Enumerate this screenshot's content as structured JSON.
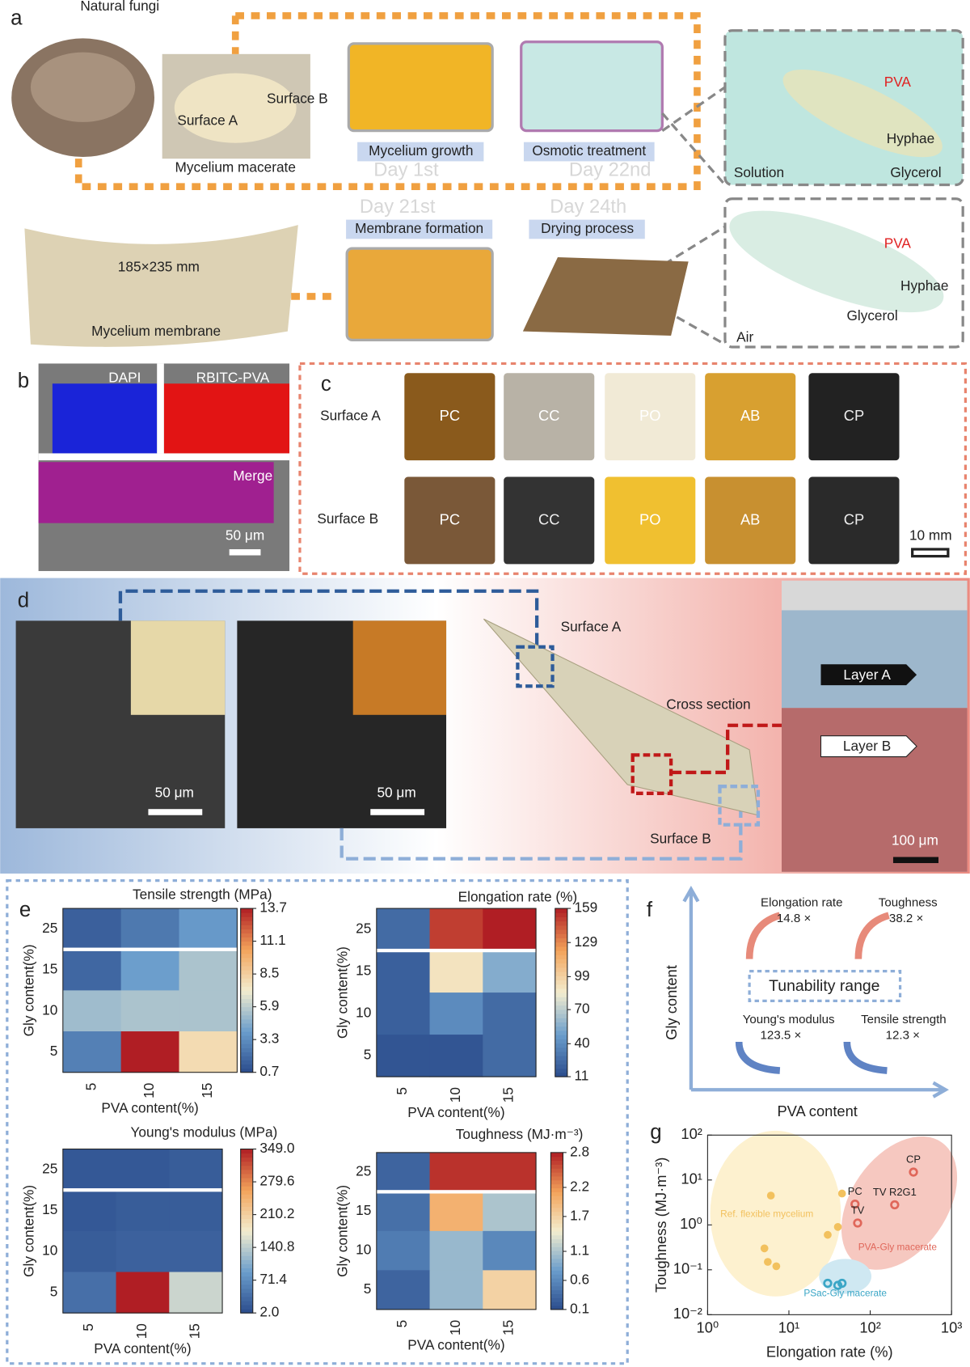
{
  "panel_a": {
    "label": "a",
    "natural_fungi": "Natural fungi",
    "surface_a": "Surface A",
    "surface_b": "Surface B",
    "macerate": "Mycelium macerate",
    "steps": [
      {
        "name": "Mycelium growth",
        "day": "Day 1st"
      },
      {
        "name": "Osmotic treatment",
        "day": "Day 22nd"
      },
      {
        "name": "Membrane formation",
        "day": "Day 21st"
      },
      {
        "name": "Drying process",
        "day": "Day 24th"
      }
    ],
    "size": "185×235 mm",
    "membrane": "Mycelium membrane",
    "inset_solution": {
      "pva": "PVA",
      "hyphae": "Hyphae",
      "medium": "Solution",
      "glycerol": "Glycerol"
    },
    "inset_air": {
      "pva": "PVA",
      "hyphae": "Hyphae",
      "glycerol": "Glycerol",
      "medium": "Air"
    }
  },
  "panel_b": {
    "label": "b",
    "dapi": "DAPI",
    "rbitc": "RBITC-PVA",
    "merge": "Merge",
    "scale": "50 μm"
  },
  "panel_c": {
    "label": "c",
    "rows": [
      "Surface A",
      "Surface B"
    ],
    "samples": [
      "PC",
      "CC",
      "PO",
      "AB",
      "CP"
    ],
    "scale": "10 mm"
  },
  "panel_d": {
    "label": "d",
    "scale_sem": "50 μm",
    "surface_a": "Surface A",
    "cross_section": "Cross section",
    "surface_b": "Surface B",
    "layer_a": "Layer A",
    "layer_b": "Layer B",
    "scale_cross": "100 μm"
  },
  "panel_e": {
    "label": "e"
  },
  "panel_f": {
    "label": "f",
    "y_axis": "Gly content",
    "x_axis": "PVA content",
    "center": "Tunability range",
    "items": [
      {
        "name": "Elongation rate",
        "fold": "14.8 ×"
      },
      {
        "name": "Toughness",
        "fold": "38.2 ×"
      },
      {
        "name": "Young's modulus",
        "fold": "123.5 ×"
      },
      {
        "name": "Tensile strength",
        "fold": "12.3 ×"
      }
    ]
  },
  "panel_g": {
    "label": "g"
  },
  "chart_data": [
    {
      "type": "heatmap",
      "title": "Tensile strength (MPa)",
      "x_label": "PVA content(%)",
      "y_label": "Gly content(%)",
      "categories": [
        "5",
        "10",
        "15"
      ],
      "rows": [
        "25",
        "15",
        "10",
        "5"
      ],
      "values": [
        [
          1.5,
          2.5,
          3.8
        ],
        [
          1.8,
          4.0,
          5.5
        ],
        [
          5.2,
          5.5,
          5.5
        ],
        [
          2.8,
          13.7,
          8.0
        ]
      ],
      "clim": [
        0.7,
        13.7
      ],
      "cticks": [
        0.7,
        3.3,
        5.9,
        8.5,
        11.1,
        13.7
      ],
      "colormap": [
        "#2b4c8c",
        "#6a9dcc",
        "#f3edcf",
        "#f3a35a",
        "#b01e24"
      ]
    },
    {
      "type": "heatmap",
      "title": "Elongation rate (%)",
      "x_label": "PVA content(%)",
      "y_label": "Gly content(%)",
      "categories": [
        "5",
        "10",
        "15"
      ],
      "rows": [
        "25",
        "15",
        "10",
        "5"
      ],
      "values": [
        [
          25,
          150,
          159
        ],
        [
          20,
          90,
          55
        ],
        [
          20,
          40,
          25
        ],
        [
          15,
          15,
          25
        ]
      ],
      "clim": [
        11,
        159
      ],
      "cticks": [
        11,
        40,
        70,
        99,
        129,
        159
      ],
      "colormap": [
        "#2b4c8c",
        "#6a9dcc",
        "#f3edcf",
        "#f3a35a",
        "#b01e24"
      ]
    },
    {
      "type": "heatmap",
      "title": "Young's modulus (MPa)",
      "x_label": "PVA content(%)",
      "y_label": "Gly content(%)",
      "categories": [
        "5",
        "10",
        "15"
      ],
      "rows": [
        "25",
        "15",
        "10",
        "5"
      ],
      "values": [
        [
          15,
          15,
          20
        ],
        [
          15,
          20,
          20
        ],
        [
          20,
          25,
          25
        ],
        [
          40,
          349,
          150
        ]
      ],
      "clim": [
        2,
        349
      ],
      "cticks": [
        {
          "value": 2,
          "label": "2.0"
        },
        71.4,
        140.8,
        210.2,
        279.6,
        {
          "value": 349,
          "label": "349.0"
        }
      ],
      "colormap": [
        "#2b4c8c",
        "#6a9dcc",
        "#f3edcf",
        "#f3a35a",
        "#b01e24"
      ]
    },
    {
      "type": "heatmap",
      "title": "Toughness (MJ·m⁻³)",
      "x_label": "PVA content(%)",
      "y_label": "Gly content(%)",
      "categories": [
        "5",
        "10",
        "15"
      ],
      "rows": [
        "25",
        "15",
        "10",
        "5"
      ],
      "values": [
        [
          0.3,
          2.7,
          2.7
        ],
        [
          0.4,
          2.0,
          1.1
        ],
        [
          0.5,
          1.0,
          0.6
        ],
        [
          0.3,
          1.0,
          1.7
        ]
      ],
      "clim": [
        0.1,
        2.8
      ],
      "cticks": [
        0.1,
        0.6,
        1.1,
        1.7,
        2.2,
        2.8
      ],
      "colormap": [
        "#2b4c8c",
        "#6a9dcc",
        "#f3edcf",
        "#f3a35a",
        "#b01e24"
      ]
    },
    {
      "type": "scatter",
      "x_label": "Elongation rate (%)",
      "y_label": "Toughness (MJ·m⁻³)",
      "log_x": true,
      "log_y": true,
      "xlim": [
        1,
        1000
      ],
      "ylim": [
        0.01,
        100
      ],
      "xticks": [
        {
          "value": 1,
          "label": "10⁰"
        },
        {
          "value": 10,
          "label": "10¹"
        },
        {
          "value": 100,
          "label": "10²"
        },
        {
          "value": 1000,
          "label": "10³"
        }
      ],
      "yticks": [
        {
          "value": 0.01,
          "label": "10⁻²"
        },
        {
          "value": 0.1,
          "label": "10⁻¹"
        },
        {
          "value": 1,
          "label": "10⁰"
        },
        {
          "value": 10,
          "label": "10¹"
        },
        {
          "value": 100,
          "label": "10²"
        }
      ],
      "series": [
        {
          "name": "Ref. flexible mycelium",
          "color": "#f2c15e",
          "filled": true,
          "x": [
            6,
            45,
            5,
            7,
            5.5,
            40,
            30
          ],
          "values": [
            4.5,
            5,
            0.3,
            0.12,
            0.15,
            0.9,
            0.6
          ]
        },
        {
          "name": "PVA-Gly macerate",
          "color": "#e0675a",
          "filled": false,
          "x": [
            340,
            65,
            200,
            70
          ],
          "values": [
            15,
            2.9,
            2.8,
            1.1
          ],
          "point_labels": [
            "CP",
            "PC",
            "TV R2G1",
            "TV"
          ]
        },
        {
          "name": "PSac-Gly macerate",
          "color": "#3aa6c6",
          "filled": false,
          "x": [
            30,
            40,
            45
          ],
          "values": [
            0.05,
            0.045,
            0.05
          ]
        }
      ]
    }
  ]
}
